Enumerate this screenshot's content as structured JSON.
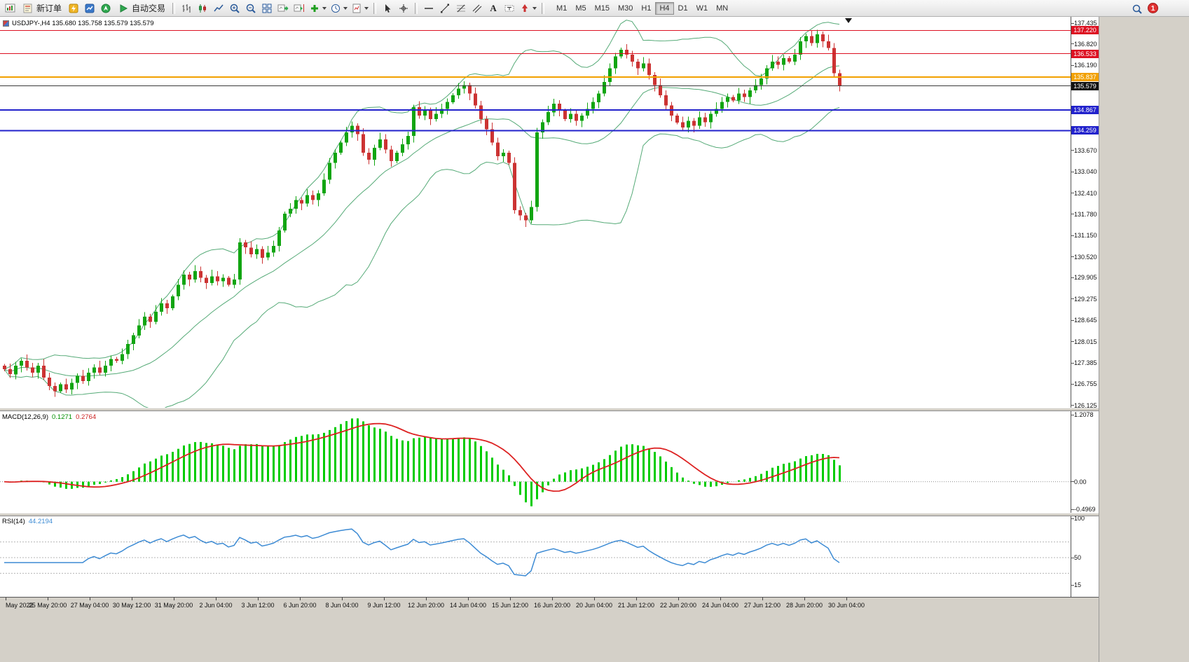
{
  "toolbar": {
    "new_order_label": "新订单",
    "autotrading_label": "自动交易",
    "text_tool_label": "A",
    "timeframes": [
      "M1",
      "M5",
      "M15",
      "M30",
      "H1",
      "H4",
      "D1",
      "W1",
      "MN"
    ],
    "active_timeframe": "H4",
    "notification_count": "1",
    "icon_names": [
      "new-chart",
      "new-order",
      "metaeditor",
      "market-watch",
      "navigator",
      "autotrading-play",
      "chart-bars",
      "chart-candles",
      "chart-line",
      "zoom-in",
      "zoom-out",
      "tile-windows",
      "auto-scroll",
      "chart-shift",
      "add-indicator",
      "periods-clock",
      "templates",
      "cursor",
      "crosshair",
      "horizontal-line",
      "trendline",
      "fibonacci",
      "equidistant-channel",
      "text",
      "text-label",
      "arrow-shapes",
      "search",
      "notification-badge"
    ]
  },
  "chart_header": {
    "symbol_line": "USDJPY-,H4 135.680 135.758 135.579 135.579"
  },
  "macd": {
    "label": "MACD(12,26,9)",
    "value_main": "0.1271",
    "value_signal": "0.2764",
    "axis": [
      "1.2078",
      "0.00",
      "-0.4969"
    ]
  },
  "rsi": {
    "label": "RSI(14)",
    "value": "44.2194",
    "axis": [
      "100",
      "50",
      "15"
    ]
  },
  "chart_data": {
    "type": "candlestick",
    "symbol": "USDJPY-",
    "timeframe": "H4",
    "title": "USDJPY-,H4",
    "price_axis_ticks": [
      "137.435",
      "136.820",
      "136.190",
      "133.670",
      "133.040",
      "132.410",
      "131.780",
      "131.150",
      "130.520",
      "129.905",
      "129.275",
      "128.645",
      "128.015",
      "127.385",
      "126.755",
      "126.125"
    ],
    "time_axis_labels": [
      "May 2022",
      "25 May 20:00",
      "27 May 04:00",
      "30 May 12:00",
      "31 May 20:00",
      "2 Jun 04:00",
      "3 Jun 12:00",
      "6 Jun 20:00",
      "8 Jun 04:00",
      "9 Jun 12:00",
      "12 Jun 20:00",
      "14 Jun 04:00",
      "15 Jun 12:00",
      "16 Jun 20:00",
      "20 Jun 04:00",
      "21 Jun 12:00",
      "22 Jun 20:00",
      "24 Jun 04:00",
      "27 Jun 12:00",
      "28 Jun 20:00",
      "30 Jun 04:00"
    ],
    "price_range": [
      126.06,
      137.54
    ],
    "levels": [
      {
        "price": "137.220",
        "color": "#dd1122",
        "width": 1
      },
      {
        "price": "136.533",
        "color": "#dd1122",
        "width": 1
      },
      {
        "price": "135.837",
        "color": "#f2a000",
        "width": 2
      },
      {
        "price": "135.579",
        "color": "#3a3a3a",
        "width": 1,
        "box": "#111111"
      },
      {
        "price": "134.867",
        "color": "#2222cc",
        "width": 2
      },
      {
        "price": "134.259",
        "color": "#2222cc",
        "width": 2
      }
    ],
    "first_open": 127.3,
    "closes": [
      127.2,
      127.05,
      127.3,
      127.45,
      127.25,
      127.1,
      127.3,
      126.95,
      126.7,
      126.55,
      126.75,
      126.6,
      126.8,
      127.0,
      126.85,
      127.1,
      127.25,
      127.1,
      127.3,
      127.5,
      127.45,
      127.65,
      127.95,
      128.2,
      128.5,
      128.75,
      128.6,
      128.9,
      129.15,
      129.0,
      129.35,
      129.7,
      130.0,
      129.85,
      130.1,
      129.9,
      129.75,
      129.95,
      129.8,
      129.9,
      129.7,
      129.85,
      130.95,
      130.8,
      130.6,
      130.75,
      130.5,
      130.65,
      130.85,
      131.3,
      131.8,
      131.95,
      132.2,
      132.1,
      132.35,
      132.2,
      132.4,
      132.8,
      133.3,
      133.6,
      133.9,
      134.2,
      134.4,
      134.15,
      133.6,
      133.4,
      133.75,
      134.0,
      133.7,
      133.35,
      133.6,
      133.85,
      134.1,
      134.95,
      134.7,
      134.85,
      134.6,
      134.75,
      134.9,
      135.1,
      135.3,
      135.5,
      135.6,
      135.35,
      135.0,
      134.6,
      134.3,
      133.9,
      133.5,
      133.6,
      133.3,
      131.9,
      131.75,
      131.6,
      132.0,
      134.2,
      134.5,
      134.8,
      135.05,
      134.85,
      134.6,
      134.75,
      134.55,
      134.7,
      134.9,
      135.1,
      135.35,
      135.7,
      136.1,
      136.45,
      136.65,
      136.5,
      136.3,
      136.1,
      136.25,
      135.9,
      135.6,
      135.3,
      135.0,
      134.7,
      134.5,
      134.35,
      134.55,
      134.4,
      134.65,
      134.5,
      134.75,
      134.9,
      135.1,
      135.25,
      135.15,
      135.35,
      135.25,
      135.45,
      135.6,
      135.8,
      136.1,
      136.3,
      136.2,
      136.4,
      136.3,
      136.5,
      136.9,
      137.05,
      136.85,
      137.1,
      136.9,
      136.7,
      135.95,
      135.579
    ],
    "bollinger": {
      "period": 20,
      "deviation": 2
    },
    "macd_params": [
      12,
      26,
      9
    ],
    "macd_range": [
      -0.4969,
      1.2078
    ],
    "rsi_period": 14,
    "rsi_range": [
      0,
      100
    ],
    "rsi_levels": [
      70,
      50,
      30
    ],
    "colors": {
      "up": "#11a511",
      "down": "#cc3333",
      "bands": "#55aa77",
      "macd_bars": "#00cc00",
      "macd_signal": "#dd2222",
      "rsi_line": "#3d8bd4"
    }
  }
}
